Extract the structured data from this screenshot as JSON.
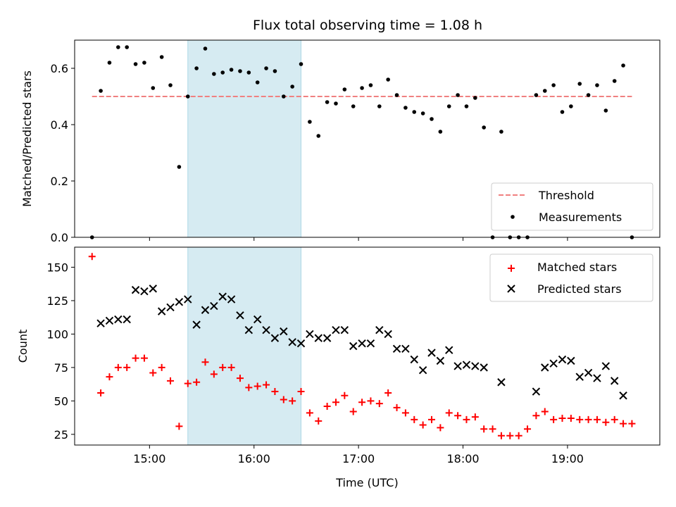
{
  "title": "Flux total observing time = 1.08 h",
  "colors": {
    "threshold": "#f08080",
    "measurement": "#000000",
    "matched": "#ff0000",
    "predicted": "#000000",
    "span": "#add8e6"
  },
  "chart_data": [
    {
      "type": "scatter",
      "panel": "top",
      "ylabel": "Matched/Predicted stars",
      "ylim": [
        0,
        0.7
      ],
      "yticks": [
        0.0,
        0.2,
        0.4,
        0.6
      ],
      "ytick_labels": [
        "0.0",
        "0.2",
        "0.4",
        "0.6"
      ],
      "xlim": [
        "14:17",
        "19:53"
      ],
      "highlight_span": [
        "15:22",
        "16:27"
      ],
      "threshold": {
        "name": "Threshold",
        "value": 0.5,
        "x": [
          "14:27",
          "19:37"
        ]
      },
      "legend": {
        "position": "lower right",
        "entries": [
          "Threshold",
          "Measurements"
        ]
      },
      "series": [
        {
          "name": "Measurements",
          "x": [
            "14:27",
            "14:32",
            "14:37",
            "14:42",
            "14:47",
            "14:52",
            "14:57",
            "15:02",
            "15:07",
            "15:12",
            "15:17",
            "15:22",
            "15:27",
            "15:32",
            "15:37",
            "15:42",
            "15:47",
            "15:52",
            "15:57",
            "16:02",
            "16:07",
            "16:12",
            "16:17",
            "16:22",
            "16:27",
            "16:32",
            "16:37",
            "16:42",
            "16:47",
            "16:52",
            "16:57",
            "17:02",
            "17:07",
            "17:12",
            "17:17",
            "17:22",
            "17:27",
            "17:32",
            "17:37",
            "17:42",
            "17:47",
            "17:52",
            "17:57",
            "18:02",
            "18:07",
            "18:12",
            "18:17",
            "18:22",
            "18:27",
            "18:32",
            "18:37",
            "18:42",
            "18:47",
            "18:52",
            "18:57",
            "19:02",
            "19:07",
            "19:12",
            "19:17",
            "19:22",
            "19:27",
            "19:32",
            "19:37"
          ],
          "y": [
            0.0,
            0.52,
            0.62,
            0.675,
            0.675,
            0.615,
            0.62,
            0.53,
            0.64,
            0.54,
            0.25,
            0.5,
            0.6,
            0.67,
            0.58,
            0.585,
            0.595,
            0.59,
            0.585,
            0.55,
            0.6,
            0.59,
            0.5,
            0.535,
            0.615,
            0.41,
            0.36,
            0.48,
            0.475,
            0.525,
            0.465,
            0.53,
            0.54,
            0.465,
            0.56,
            0.505,
            0.46,
            0.445,
            0.44,
            0.42,
            0.375,
            0.465,
            0.505,
            0.465,
            0.495,
            0.39,
            0.0,
            0.375,
            0.0,
            0.0,
            0.0,
            0.505,
            0.52,
            0.54,
            0.445,
            0.465,
            0.545,
            0.505,
            0.54,
            0.45,
            0.555,
            0.61,
            0.0
          ]
        }
      ]
    },
    {
      "type": "scatter",
      "panel": "bottom",
      "xlabel": "Time (UTC)",
      "ylabel": "Count",
      "ylim": [
        17,
        165
      ],
      "yticks": [
        25,
        50,
        75,
        100,
        125,
        150
      ],
      "ytick_labels": [
        "25",
        "50",
        "75",
        "100",
        "125",
        "150"
      ],
      "xlim": [
        "14:17",
        "19:53"
      ],
      "xticks": [
        "15:00",
        "16:00",
        "17:00",
        "18:00",
        "19:00"
      ],
      "xtick_labels": [
        "15:00",
        "16:00",
        "17:00",
        "18:00",
        "19:00"
      ],
      "highlight_span": [
        "15:22",
        "16:27"
      ],
      "legend": {
        "position": "upper right",
        "entries": [
          "Matched stars",
          "Predicted stars"
        ]
      },
      "series": [
        {
          "name": "Matched stars",
          "marker": "+",
          "x": [
            "14:27",
            "14:32",
            "14:37",
            "14:42",
            "14:47",
            "14:52",
            "14:57",
            "15:02",
            "15:07",
            "15:12",
            "15:17",
            "15:22",
            "15:27",
            "15:32",
            "15:37",
            "15:42",
            "15:47",
            "15:52",
            "15:57",
            "16:02",
            "16:07",
            "16:12",
            "16:17",
            "16:22",
            "16:27",
            "16:32",
            "16:37",
            "16:42",
            "16:47",
            "16:52",
            "16:57",
            "17:02",
            "17:07",
            "17:12",
            "17:17",
            "17:22",
            "17:27",
            "17:32",
            "17:37",
            "17:42",
            "17:47",
            "17:52",
            "17:57",
            "18:02",
            "18:07",
            "18:12",
            "18:17",
            "18:22",
            "18:27",
            "18:32",
            "18:37",
            "18:42",
            "18:47",
            "18:52",
            "18:57",
            "19:02",
            "19:07",
            "19:12",
            "19:17",
            "19:22",
            "19:27",
            "19:32",
            "19:37"
          ],
          "y": [
            158,
            56,
            68,
            75,
            75,
            82,
            82,
            71,
            75,
            65,
            31,
            63,
            64,
            79,
            70,
            75,
            75,
            67,
            60,
            61,
            62,
            57,
            51,
            50,
            57,
            41,
            35,
            46,
            49,
            54,
            42,
            49,
            50,
            48,
            56,
            45,
            41,
            36,
            32,
            36,
            30,
            41,
            39,
            36,
            38,
            29,
            29,
            24,
            24,
            24,
            29,
            39,
            42,
            36,
            37,
            37,
            36,
            36,
            36,
            34,
            36,
            33,
            33
          ]
        },
        {
          "name": "Predicted stars",
          "marker": "x",
          "x": [
            "14:32",
            "14:37",
            "14:42",
            "14:47",
            "14:52",
            "14:57",
            "15:02",
            "15:07",
            "15:12",
            "15:17",
            "15:22",
            "15:27",
            "15:32",
            "15:37",
            "15:42",
            "15:47",
            "15:52",
            "15:57",
            "16:02",
            "16:07",
            "16:12",
            "16:17",
            "16:22",
            "16:27",
            "16:32",
            "16:37",
            "16:42",
            "16:47",
            "16:52",
            "16:57",
            "17:02",
            "17:07",
            "17:12",
            "17:17",
            "17:22",
            "17:27",
            "17:32",
            "17:37",
            "17:42",
            "17:47",
            "17:52",
            "17:57",
            "18:02",
            "18:07",
            "18:12",
            "18:22",
            "18:42",
            "18:47",
            "18:52",
            "18:57",
            "19:02",
            "19:07",
            "19:12",
            "19:17",
            "19:22",
            "19:27",
            "19:32"
          ],
          "y": [
            108,
            110,
            111,
            111,
            133,
            132,
            134,
            117,
            120,
            124,
            126,
            107,
            118,
            121,
            128,
            126,
            114,
            103,
            111,
            103,
            97,
            102,
            94,
            93,
            100,
            97,
            97,
            103,
            103,
            91,
            93,
            93,
            103,
            100,
            89,
            89,
            81,
            73,
            86,
            80,
            88,
            76,
            77,
            76,
            75,
            64,
            57,
            75,
            78,
            81,
            80,
            68,
            71,
            67,
            76,
            65,
            54
          ]
        }
      ]
    }
  ]
}
